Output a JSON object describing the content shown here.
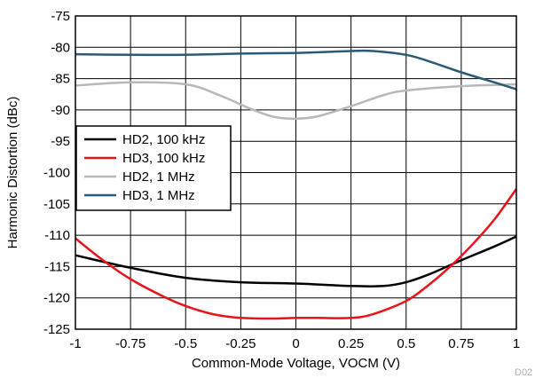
{
  "chart_data": {
    "type": "line",
    "title": "",
    "xlabel": "Common-Mode Voltage, VOCM (V)",
    "ylabel": "Harmonic Distortion (dBc)",
    "xlim": [
      -1,
      1
    ],
    "ylim": [
      -125,
      -75
    ],
    "xticks": [
      -1,
      -0.75,
      -0.5,
      -0.25,
      0,
      0.25,
      0.5,
      0.75,
      1
    ],
    "xtick_labels": [
      "-1",
      "-0.75",
      "-0.5",
      "-0.25",
      "0",
      "0.25",
      "0.5",
      "0.75",
      "1"
    ],
    "yticks": [
      -75,
      -80,
      -85,
      -90,
      -95,
      -100,
      -105,
      -110,
      -115,
      -120,
      -125
    ],
    "ytick_labels": [
      "-75",
      "-80",
      "-85",
      "-90",
      "-95",
      "-100",
      "-105",
      "-110",
      "-115",
      "-120",
      "-125"
    ],
    "grid": true,
    "legend_position": "middle-left",
    "series": [
      {
        "name": "HD2, 100 kHz",
        "color": "#000000",
        "x": [
          -1,
          -0.75,
          -0.5,
          -0.25,
          0,
          0.25,
          0.4,
          0.5,
          0.6,
          0.75,
          0.9,
          1
        ],
        "y": [
          -113.2,
          -115.2,
          -116.8,
          -117.5,
          -117.7,
          -118.1,
          -118.1,
          -117.5,
          -116.3,
          -114.0,
          -111.8,
          -110.2
        ]
      },
      {
        "name": "HD3, 100 kHz",
        "color": "#e8141a",
        "x": [
          -1,
          -0.875,
          -0.75,
          -0.6,
          -0.5,
          -0.375,
          -0.25,
          -0.1,
          0,
          0.1,
          0.25,
          0.35,
          0.5,
          0.6,
          0.7,
          0.8,
          0.9,
          1
        ],
        "y": [
          -110.5,
          -114.0,
          -117.0,
          -119.8,
          -121.3,
          -122.6,
          -123.2,
          -123.3,
          -123.2,
          -123.2,
          -123.2,
          -122.6,
          -120.5,
          -118.0,
          -115.0,
          -111.5,
          -107.5,
          -102.6
        ]
      },
      {
        "name": "HD2, 1 MHz",
        "color": "#b8b8b8",
        "x": [
          -1,
          -0.75,
          -0.5,
          -0.35,
          -0.2,
          -0.1,
          0,
          0.1,
          0.25,
          0.4,
          0.5,
          0.75,
          1
        ],
        "y": [
          -86.1,
          -85.6,
          -85.9,
          -87.6,
          -89.9,
          -91.1,
          -91.4,
          -91.0,
          -89.4,
          -87.6,
          -86.9,
          -86.2,
          -85.9
        ]
      },
      {
        "name": "HD3, 1 MHz",
        "color": "#2c5a74",
        "x": [
          -1,
          -0.75,
          -0.5,
          -0.25,
          0,
          0.25,
          0.35,
          0.5,
          0.6,
          0.75,
          0.9,
          1
        ],
        "y": [
          -81.1,
          -81.2,
          -81.2,
          -81.0,
          -80.9,
          -80.6,
          -80.6,
          -81.2,
          -82.2,
          -84.0,
          -85.6,
          -86.7
        ]
      }
    ]
  },
  "figure_code": "D02"
}
